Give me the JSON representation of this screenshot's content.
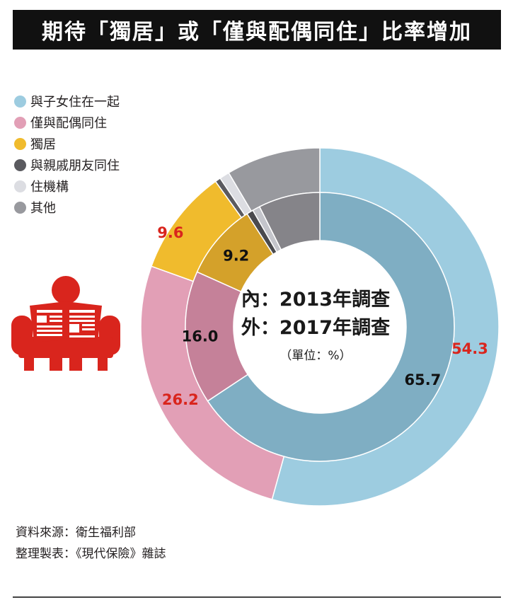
{
  "title": "期待「獨居」或「僅與配偶同住」比率增加",
  "center": {
    "inner_label": "內：2013年調查",
    "outer_label": "外：2017年調查",
    "unit": "（單位：%）"
  },
  "legend": [
    {
      "label": "與子女住在一起",
      "color": "#9dcce0"
    },
    {
      "label": "僅與配偶同住",
      "color": "#e29fb6"
    },
    {
      "label": "獨居",
      "color": "#f0bb2d"
    },
    {
      "label": "與親戚朋友同住",
      "color": "#5a5a5f"
    },
    {
      "label": "住機構",
      "color": "#dcdde2"
    },
    {
      "label": "其他",
      "color": "#98999e"
    }
  ],
  "chart_data": {
    "type": "donut",
    "categories": [
      "與子女住在一起",
      "僅與配偶同住",
      "獨居",
      "與親戚朋友同住",
      "住機構",
      "其他"
    ],
    "series": [
      {
        "name": "內：2013年調查",
        "ring": "inner",
        "values": [
          65.7,
          16.0,
          9.2,
          0.8,
          0.9,
          7.4
        ],
        "colors": [
          "#7faec3",
          "#c58199",
          "#d4a12a",
          "#4a4a4e",
          "#c4c5cb",
          "#858489"
        ],
        "labels": [
          "65.7",
          "16.0",
          "9.2",
          "",
          "",
          ""
        ]
      },
      {
        "name": "外：2017年調查",
        "ring": "outer",
        "values": [
          54.3,
          26.2,
          9.6,
          0.5,
          0.9,
          8.5
        ],
        "colors": [
          "#9dcce0",
          "#e29fb6",
          "#f0bb2d",
          "#5a5a5f",
          "#dcdde2",
          "#98999e"
        ],
        "labels": [
          "54.3",
          "26.2",
          "9.6",
          "",
          "",
          ""
        ]
      }
    ],
    "label_color_inner": "#111111",
    "label_color_outer": "#d9251d"
  },
  "source": {
    "line1": "資料來源：衛生福利部",
    "line2": "整理製表：《現代保險》雜誌"
  }
}
